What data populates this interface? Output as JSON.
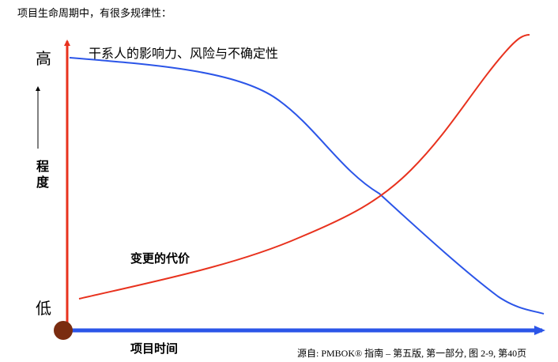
{
  "header": {
    "title": "项目生命周期中，有很多规律性："
  },
  "diagram": {
    "y_high": "高",
    "y_low": "低",
    "y_label": "程度",
    "x_label": "项目时间",
    "curves": [
      {
        "label": "干系人的影响力、风险与不确定性"
      },
      {
        "label": "变更的代价"
      }
    ],
    "source": "源自: PMBOK® 指南 – 第五版, 第一部分, 图 2-9, 第40页"
  }
}
